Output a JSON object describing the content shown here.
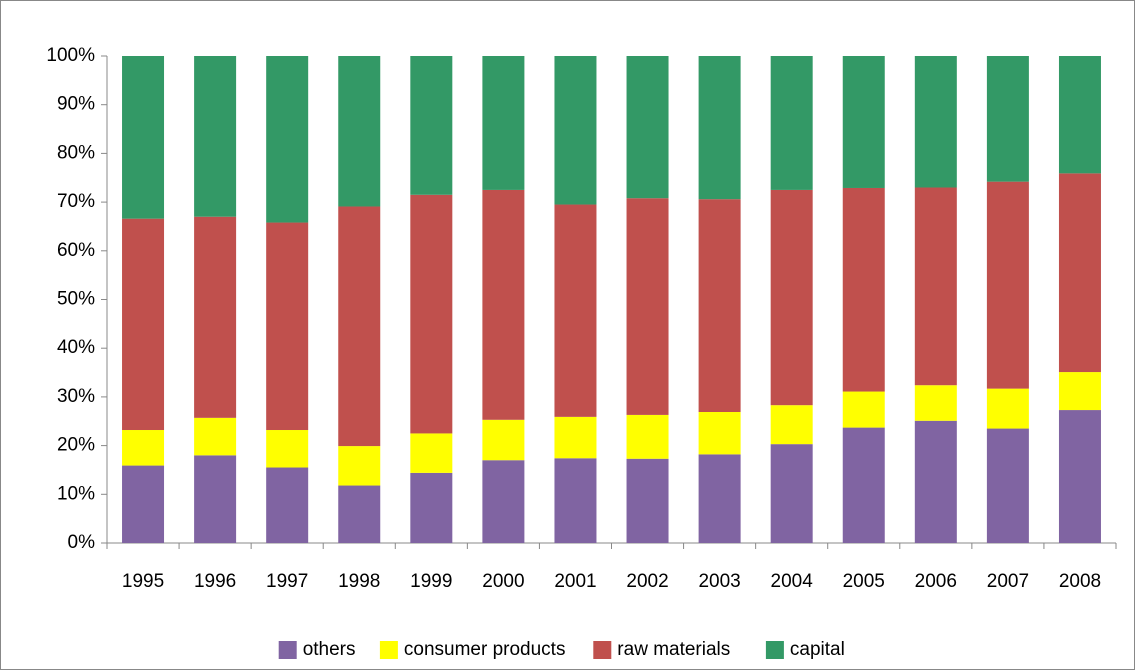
{
  "chart_data": {
    "type": "stacked_bar",
    "categories": [
      "1995",
      "1996",
      "1997",
      "1998",
      "1999",
      "2000",
      "2001",
      "2002",
      "2003",
      "2004",
      "2005",
      "2006",
      "2007",
      "2008"
    ],
    "series": [
      {
        "name": "others",
        "color": "#8064a2",
        "values": [
          15.9,
          18.0,
          15.5,
          11.8,
          14.4,
          17.0,
          17.4,
          17.3,
          18.2,
          20.3,
          23.7,
          25.1,
          23.5,
          27.3
        ]
      },
      {
        "name": "consumer products",
        "color": "#ffff00",
        "values": [
          7.3,
          7.7,
          7.7,
          8.1,
          8.1,
          8.3,
          8.5,
          9.0,
          8.7,
          8.0,
          7.4,
          7.3,
          8.2,
          7.8
        ]
      },
      {
        "name": "raw materials",
        "color": "#c0504d",
        "values": [
          43.4,
          41.3,
          42.6,
          49.2,
          49.0,
          47.2,
          43.6,
          44.5,
          43.7,
          44.2,
          41.8,
          40.6,
          42.5,
          40.8
        ]
      },
      {
        "name": "capital",
        "color": "#339966",
        "values": [
          33.4,
          33.0,
          34.2,
          30.9,
          28.5,
          27.5,
          30.5,
          29.2,
          29.4,
          27.5,
          27.1,
          27.0,
          25.8,
          24.1
        ]
      }
    ],
    "ylim": [
      0,
      100
    ],
    "yticks": [
      {
        "value": 0,
        "label": "0%"
      },
      {
        "value": 10,
        "label": "10%"
      },
      {
        "value": 20,
        "label": "20%"
      },
      {
        "value": 30,
        "label": "30%"
      },
      {
        "value": 40,
        "label": "40%"
      },
      {
        "value": 50,
        "label": "50%"
      },
      {
        "value": 60,
        "label": "60%"
      },
      {
        "value": 70,
        "label": "70%"
      },
      {
        "value": 80,
        "label": "80%"
      },
      {
        "value": 90,
        "label": "90%"
      },
      {
        "value": 100,
        "label": "100%"
      }
    ],
    "grid": false,
    "legend": "bottom"
  }
}
